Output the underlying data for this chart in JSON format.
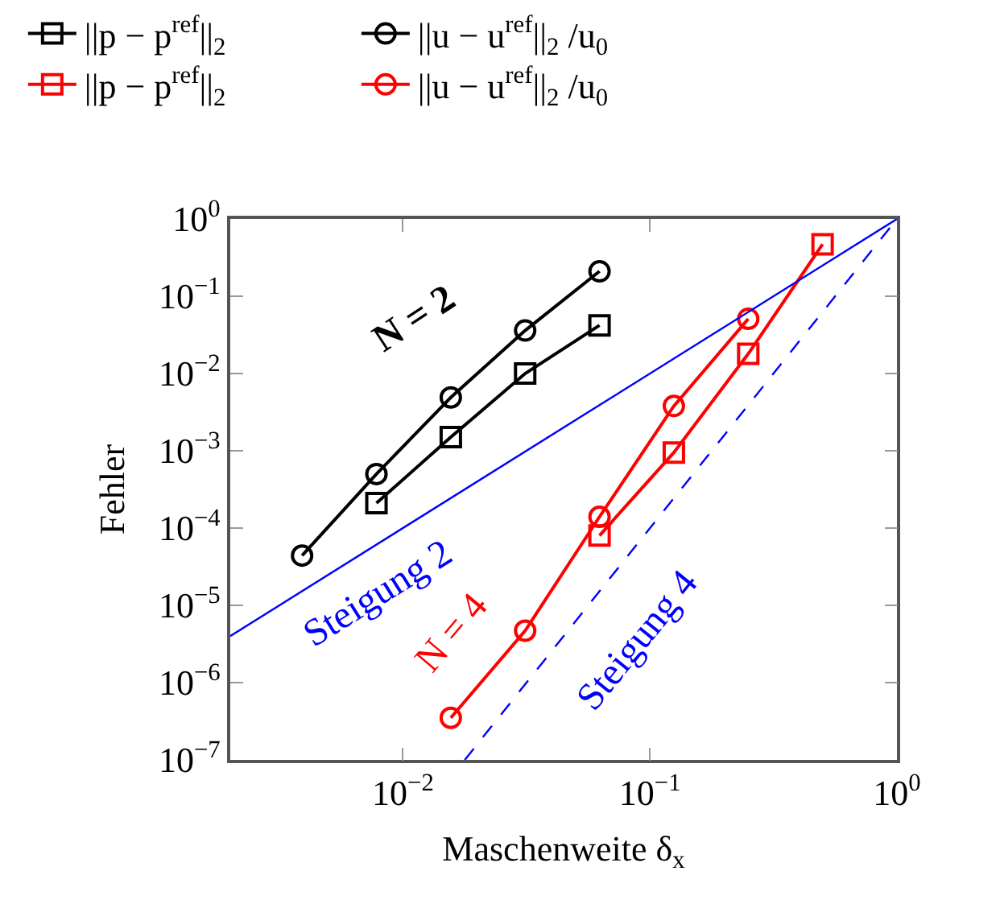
{
  "chart_data": {
    "type": "line",
    "xlabel": "Maschenweite δ$_{x}$",
    "ylabel": "Fehler",
    "log": "xy",
    "legend": "top",
    "xlim": [
      0.002,
      1
    ],
    "ylim": [
      1e-07,
      1
    ],
    "xticks": [
      {
        "value": 0.01,
        "label": "10$^{−2}$"
      },
      {
        "value": 0.1,
        "label": "10$^{−1}$"
      },
      {
        "value": 1,
        "label": "10$^{0}$"
      }
    ],
    "yticks": [
      {
        "value": 1e-07,
        "label": "10$^{−7}$"
      },
      {
        "value": 1e-06,
        "label": "10$^{−6}$"
      },
      {
        "value": 1e-05,
        "label": "10$^{−5}$"
      },
      {
        "value": 0.0001,
        "label": "10$^{−4}$"
      },
      {
        "value": 0.001,
        "label": "10$^{−3}$"
      },
      {
        "value": 0.01,
        "label": "10$^{−2}$"
      },
      {
        "value": 0.1,
        "label": "10$^{−1}$"
      },
      {
        "value": 1,
        "label": "10$^{0}$"
      }
    ],
    "series": [
      {
        "name": "||p − p$^{ref}$||$_{2}$",
        "color": "#000000",
        "marker": "square",
        "x": [
          0.0078125,
          0.015625,
          0.03125,
          0.0625
        ],
        "values": [
          0.00021,
          0.0015,
          0.01,
          0.042
        ]
      },
      {
        "name": "||u − u$^{ref}$||$_{2}$ /u$_{0}$",
        "color": "#000000",
        "marker": "circle",
        "x": [
          0.00390625,
          0.0078125,
          0.015625,
          0.03125,
          0.0625
        ],
        "values": [
          4.4e-05,
          0.0005,
          0.0049,
          0.036,
          0.21
        ]
      },
      {
        "name": "||p − p$^{ref}$||$_{2}$",
        "color": "#ff0000",
        "marker": "square",
        "x": [
          0.0625,
          0.125,
          0.25,
          0.5
        ],
        "values": [
          8e-05,
          0.00095,
          0.018,
          0.47
        ]
      },
      {
        "name": "||u − u$^{ref}$||$_{2}$ /u$_{0}$",
        "color": "#ff0000",
        "marker": "circle",
        "x": [
          0.015625,
          0.03125,
          0.0625,
          0.125,
          0.25
        ],
        "values": [
          3.5e-07,
          4.7e-06,
          0.00014,
          0.0038,
          0.051
        ]
      },
      {
        "color": "#0000ff",
        "marker": "none",
        "line_style": "solid",
        "x": [
          0.002,
          1
        ],
        "values": [
          4e-06,
          1
        ]
      },
      {
        "color": "#0000ff",
        "marker": "none",
        "line_style": "dashed",
        "x": [
          0.0178,
          1
        ],
        "values": [
          1e-07,
          1
        ]
      }
    ],
    "annotations": [
      "Steigung 2",
      "Steigung 4",
      "N = 4",
      "N = 2"
    ]
  }
}
